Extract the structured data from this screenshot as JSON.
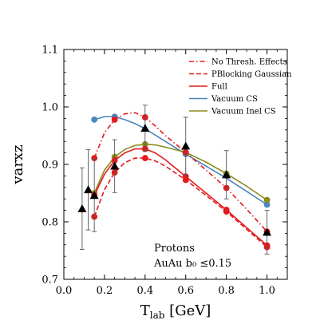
{
  "chart_data": {
    "type": "line",
    "xlabel": "T_lab [GeV]",
    "ylabel": "varxz",
    "xlim": [
      0.0,
      1.1
    ],
    "ylim": [
      0.7,
      1.1
    ],
    "xticks": [
      0.0,
      0.2,
      0.4,
      0.6,
      0.8,
      1.0
    ],
    "xtick_labels": [
      "0.0",
      "0.2",
      "0.4",
      "0.6",
      "0.8",
      "1.0"
    ],
    "yticks": [
      0.7,
      0.8,
      0.9,
      1.0,
      1.1
    ],
    "ytick_labels": [
      "0.7",
      "0.8",
      "0.9",
      "1.0",
      "1.1"
    ],
    "grid": false,
    "legend_position": "top-right",
    "annotations": [
      "Protons",
      "AuAu b₀ ≤0.15"
    ],
    "series": [
      {
        "name": "No Thresh. Effects",
        "color": "#e31a1c",
        "style": "dashdot",
        "x": [
          0.15,
          0.25,
          0.4,
          0.6,
          0.8,
          1.0
        ],
        "y": [
          0.911,
          0.978,
          0.982,
          0.921,
          0.859,
          0.783
        ],
        "markers": [
          0.15,
          0.25,
          0.4,
          0.6,
          0.8,
          1.0
        ],
        "curve_x": [
          0.15,
          0.2,
          0.25,
          0.3,
          0.35,
          0.4,
          0.45,
          0.5,
          0.6,
          0.7,
          0.8,
          0.9,
          1.0
        ],
        "curve_y": [
          0.911,
          0.955,
          0.978,
          0.988,
          0.99,
          0.982,
          0.967,
          0.95,
          0.921,
          0.89,
          0.859,
          0.822,
          0.783
        ]
      },
      {
        "name": "PBlocking Gaussian",
        "color": "#e31a1c",
        "style": "dashed",
        "x": [
          0.15,
          0.25,
          0.4,
          0.6,
          0.8,
          1.0
        ],
        "y": [
          0.809,
          0.886,
          0.911,
          0.873,
          0.818,
          0.756
        ],
        "markers": [
          0.15,
          0.25,
          0.4,
          0.6,
          0.8,
          1.0
        ],
        "curve_x": [
          0.15,
          0.2,
          0.25,
          0.3,
          0.35,
          0.4,
          0.45,
          0.5,
          0.6,
          0.7,
          0.8,
          0.9,
          1.0
        ],
        "curve_y": [
          0.809,
          0.856,
          0.886,
          0.903,
          0.911,
          0.911,
          0.906,
          0.897,
          0.873,
          0.846,
          0.818,
          0.787,
          0.756
        ]
      },
      {
        "name": "Full",
        "color": "#e31a1c",
        "style": "solid",
        "x": [
          0.15,
          0.25,
          0.4,
          0.6,
          0.8,
          1.0
        ],
        "y": [
          0.846,
          0.907,
          0.927,
          0.879,
          0.821,
          0.759
        ],
        "markers": [
          0.15,
          0.25,
          0.4,
          0.6,
          0.8,
          1.0
        ],
        "curve_x": [
          0.15,
          0.2,
          0.25,
          0.3,
          0.35,
          0.4,
          0.45,
          0.5,
          0.6,
          0.7,
          0.8,
          0.9,
          1.0
        ],
        "curve_y": [
          0.846,
          0.883,
          0.907,
          0.92,
          0.927,
          0.927,
          0.92,
          0.908,
          0.879,
          0.85,
          0.821,
          0.79,
          0.759
        ]
      },
      {
        "name": "Vacuum CS",
        "color": "#4a86bd",
        "style": "solid",
        "x": [
          0.15,
          0.25,
          0.4,
          0.6,
          0.8,
          1.0
        ],
        "y": [
          0.978,
          0.983,
          0.962,
          0.918,
          0.876,
          0.83
        ],
        "markers": [
          0.15,
          0.25,
          0.6,
          1.0
        ],
        "curve_x": [
          0.15,
          0.2,
          0.25,
          0.3,
          0.35,
          0.4,
          0.5,
          0.6,
          0.7,
          0.8,
          0.9,
          1.0
        ],
        "curve_y": [
          0.978,
          0.983,
          0.983,
          0.978,
          0.971,
          0.962,
          0.94,
          0.918,
          0.897,
          0.876,
          0.853,
          0.83
        ]
      },
      {
        "name": "Vacuum Inel CS",
        "color": "#8a8a1a",
        "style": "solid",
        "x": [
          0.15,
          0.25,
          0.4,
          0.6,
          0.8,
          1.0
        ],
        "y": [
          0.85,
          0.913,
          0.935,
          0.921,
          0.884,
          0.838
        ],
        "markers": [
          0.15,
          0.25,
          0.4,
          0.6,
          0.8,
          1.0
        ],
        "curve_x": [
          0.15,
          0.2,
          0.25,
          0.3,
          0.35,
          0.4,
          0.45,
          0.5,
          0.6,
          0.7,
          0.8,
          0.9,
          1.0
        ],
        "curve_y": [
          0.85,
          0.89,
          0.913,
          0.926,
          0.933,
          0.935,
          0.934,
          0.93,
          0.921,
          0.904,
          0.884,
          0.862,
          0.838
        ]
      }
    ],
    "experimental": {
      "color": "#000000",
      "marker": "triangle",
      "points": [
        {
          "x": 0.09,
          "y": 0.823,
          "err": 0.071
        },
        {
          "x": 0.12,
          "y": 0.856,
          "err": 0.07
        },
        {
          "x": 0.15,
          "y": 0.846,
          "err": 0.063
        },
        {
          "x": 0.25,
          "y": 0.897,
          "err": 0.046
        },
        {
          "x": 0.4,
          "y": 0.963,
          "err": 0.04
        },
        {
          "x": 0.6,
          "y": 0.932,
          "err": 0.05
        },
        {
          "x": 0.8,
          "y": 0.882,
          "err": 0.042
        },
        {
          "x": 1.0,
          "y": 0.782,
          "err": 0.038
        }
      ]
    }
  }
}
